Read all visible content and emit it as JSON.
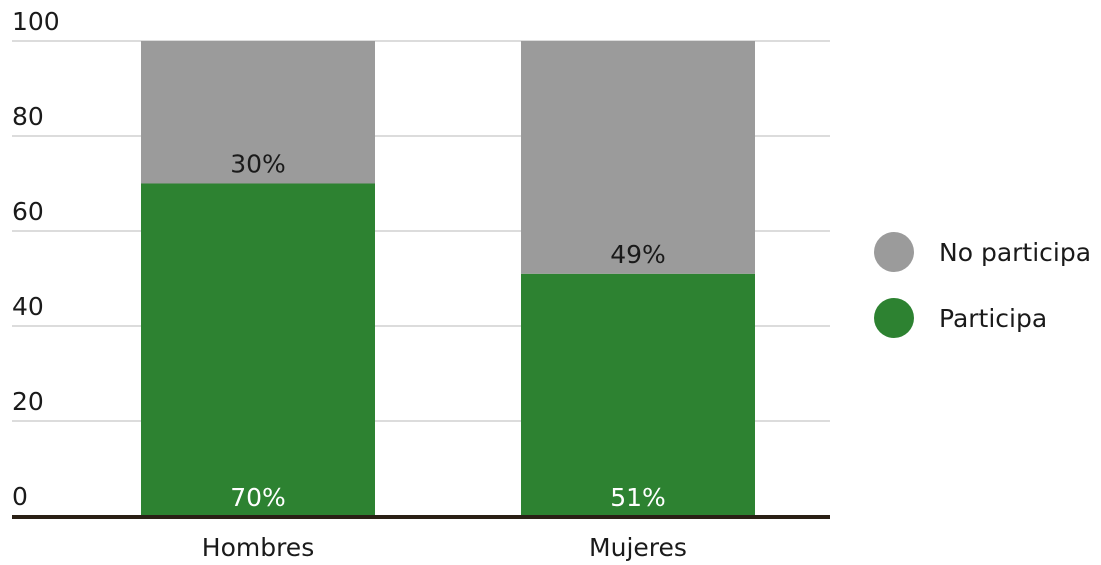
{
  "chart_data": {
    "type": "bar",
    "stacked": true,
    "categories": [
      "Hombres",
      "Mujeres"
    ],
    "series": [
      {
        "name": "Participa",
        "values": [
          70,
          51
        ],
        "labels": [
          "70%",
          "51%"
        ],
        "color": "#2d8231"
      },
      {
        "name": "No participa",
        "values": [
          30,
          49
        ],
        "labels": [
          "30%",
          "49%"
        ],
        "color": "#9b9b9b"
      }
    ],
    "ylim": [
      0,
      100
    ],
    "yticks": [
      0,
      20,
      40,
      60,
      80,
      100
    ],
    "grid": true,
    "legend_position": "right",
    "legend": [
      {
        "label": "No participa",
        "color": "#9b9b9b"
      },
      {
        "label": "Participa",
        "color": "#2d8231"
      }
    ]
  }
}
